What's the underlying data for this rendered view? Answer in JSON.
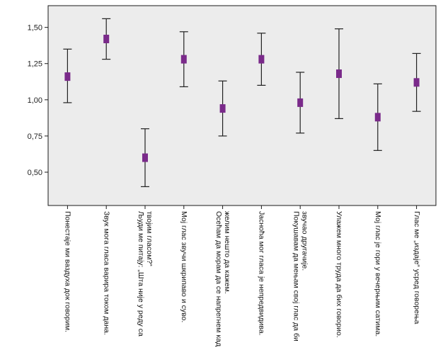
{
  "chart_data": {
    "type": "errorbar",
    "title": "",
    "xlabel": "",
    "ylabel": "",
    "ylim": [
      0.27,
      1.65
    ],
    "y_ticks": [
      "0,50",
      "0,75",
      "1,00",
      "1,25",
      "1,50"
    ],
    "y_tick_values": [
      0.5,
      0.75,
      1.0,
      1.25,
      1.5
    ],
    "grid": false,
    "marker_color": "#7a2a8a",
    "categories": [
      [
        "Понестаје ми ваздуха док говорим."
      ],
      [
        "Звук мога гласа варира током дана."
      ],
      [
        "Људи ме питају: „Шта није у реду са",
        "твојим гласом?“"
      ],
      [
        "Мој глас звучи шкрипаво и суво."
      ],
      [
        "Осећам да морам да се напрегнем кад",
        "желим нешто да кажем."
      ],
      [
        "Јасноћа мог гласа је непредвидива."
      ],
      [
        "Покушавам да мењам свој глас да би",
        "звучао другачије."
      ],
      [
        "Улажем много труда да бих говорио."
      ],
      [
        "Мој глас је гори у вечерњим сатима."
      ],
      [
        "Глас ме „издаје“ усред говорења"
      ]
    ],
    "means": [
      1.16,
      1.42,
      0.6,
      1.28,
      0.94,
      1.28,
      0.98,
      1.18,
      0.88,
      1.12
    ],
    "lower": [
      0.98,
      1.28,
      0.4,
      1.09,
      0.75,
      1.1,
      0.77,
      0.87,
      0.65,
      0.92
    ],
    "upper": [
      1.35,
      1.56,
      0.8,
      1.47,
      1.13,
      1.46,
      1.19,
      1.49,
      1.11,
      1.32
    ]
  }
}
